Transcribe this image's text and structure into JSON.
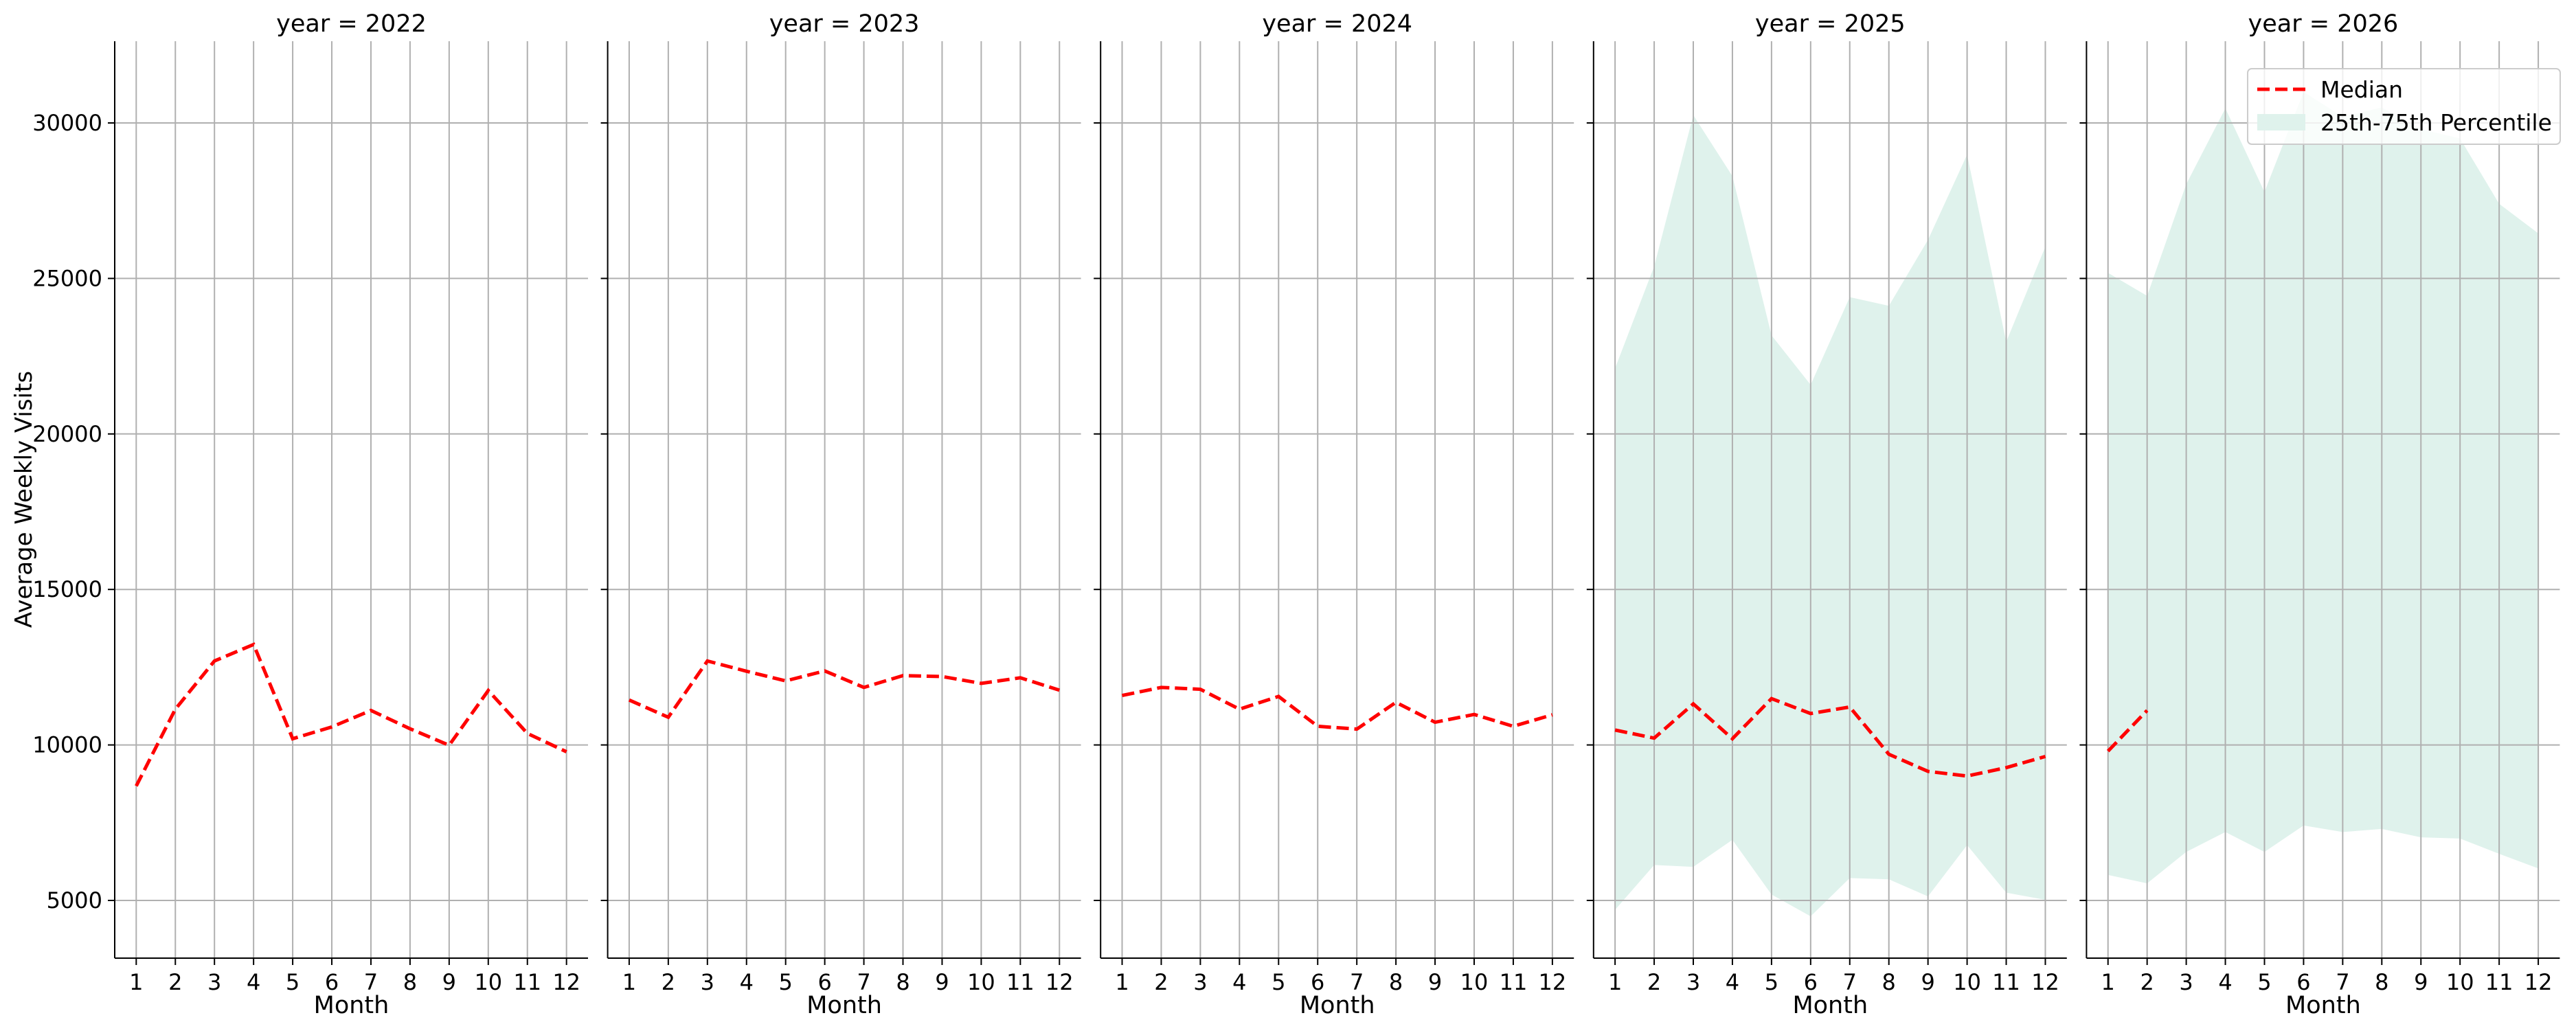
{
  "chart_data": {
    "type": "line",
    "facet_title_prefix": "year = ",
    "xlabel": "Month",
    "ylabel": "Average Weekly Visits",
    "xlim": [
      0.45,
      12.55
    ],
    "ylim": [
      3145,
      32628
    ],
    "x_ticks": [
      1,
      2,
      3,
      4,
      5,
      6,
      7,
      8,
      9,
      10,
      11,
      12
    ],
    "y_ticks": [
      5000,
      10000,
      15000,
      20000,
      25000,
      30000
    ],
    "grid": true,
    "shared_y": true,
    "legend": {
      "placement": "top-right of last panel",
      "entries": [
        "Median",
        "25th-75th Percentile"
      ]
    },
    "colors": {
      "median": "#ff0000",
      "band": "#dff2ec",
      "grid": "#b0b0b0"
    },
    "panels": [
      {
        "year": "2022",
        "months": [
          1,
          2,
          3,
          4,
          5,
          6,
          7,
          8,
          9,
          10,
          11,
          12
        ],
        "median": [
          8680,
          11150,
          12700,
          13230,
          10200,
          10580,
          11110,
          10520,
          9990,
          11750,
          10370,
          9780
        ],
        "p25": null,
        "p75": null
      },
      {
        "year": "2023",
        "months": [
          1,
          2,
          3,
          4,
          5,
          6,
          7,
          8,
          9,
          10,
          11,
          12
        ],
        "median": [
          11445,
          10890,
          12700,
          12370,
          12060,
          12380,
          11850,
          12230,
          12200,
          11980,
          12160,
          11760
        ],
        "p25": null,
        "p75": null
      },
      {
        "year": "2024",
        "months": [
          1,
          2,
          3,
          4,
          5,
          6,
          7,
          8,
          9,
          10,
          11,
          12
        ],
        "median": [
          11590,
          11850,
          11790,
          11150,
          11560,
          10600,
          10510,
          11370,
          10730,
          10980,
          10600,
          10970
        ],
        "p25": null,
        "p75": null
      },
      {
        "year": "2025",
        "months": [
          1,
          2,
          3,
          4,
          5,
          6,
          7,
          8,
          9,
          10,
          11,
          12
        ],
        "median": [
          10480,
          10220,
          11320,
          10200,
          11490,
          11010,
          11220,
          9700,
          9150,
          9000,
          9270,
          9630
        ],
        "p25": [
          4700,
          6140,
          6080,
          6950,
          5190,
          4490,
          5720,
          5680,
          5130,
          6780,
          5250,
          5020
        ],
        "p75": [
          22110,
          25390,
          30250,
          28290,
          23170,
          21580,
          24400,
          24120,
          26240,
          28980,
          22960,
          26020
        ]
      },
      {
        "year": "2026",
        "months": [
          1,
          2,
          3,
          4,
          5,
          6,
          7,
          8,
          9,
          10,
          11,
          12
        ],
        "median": [
          9800,
          11110,
          null,
          null,
          null,
          null,
          null,
          null,
          null,
          null,
          null,
          null
        ],
        "p25": [
          5820,
          5550,
          6560,
          7200,
          6560,
          7410,
          7200,
          7300,
          7030,
          6990,
          6500,
          6030
        ],
        "p75": [
          25180,
          24440,
          28030,
          30470,
          27780,
          31000,
          30200,
          30500,
          29800,
          29500,
          27400,
          26450
        ]
      }
    ]
  }
}
